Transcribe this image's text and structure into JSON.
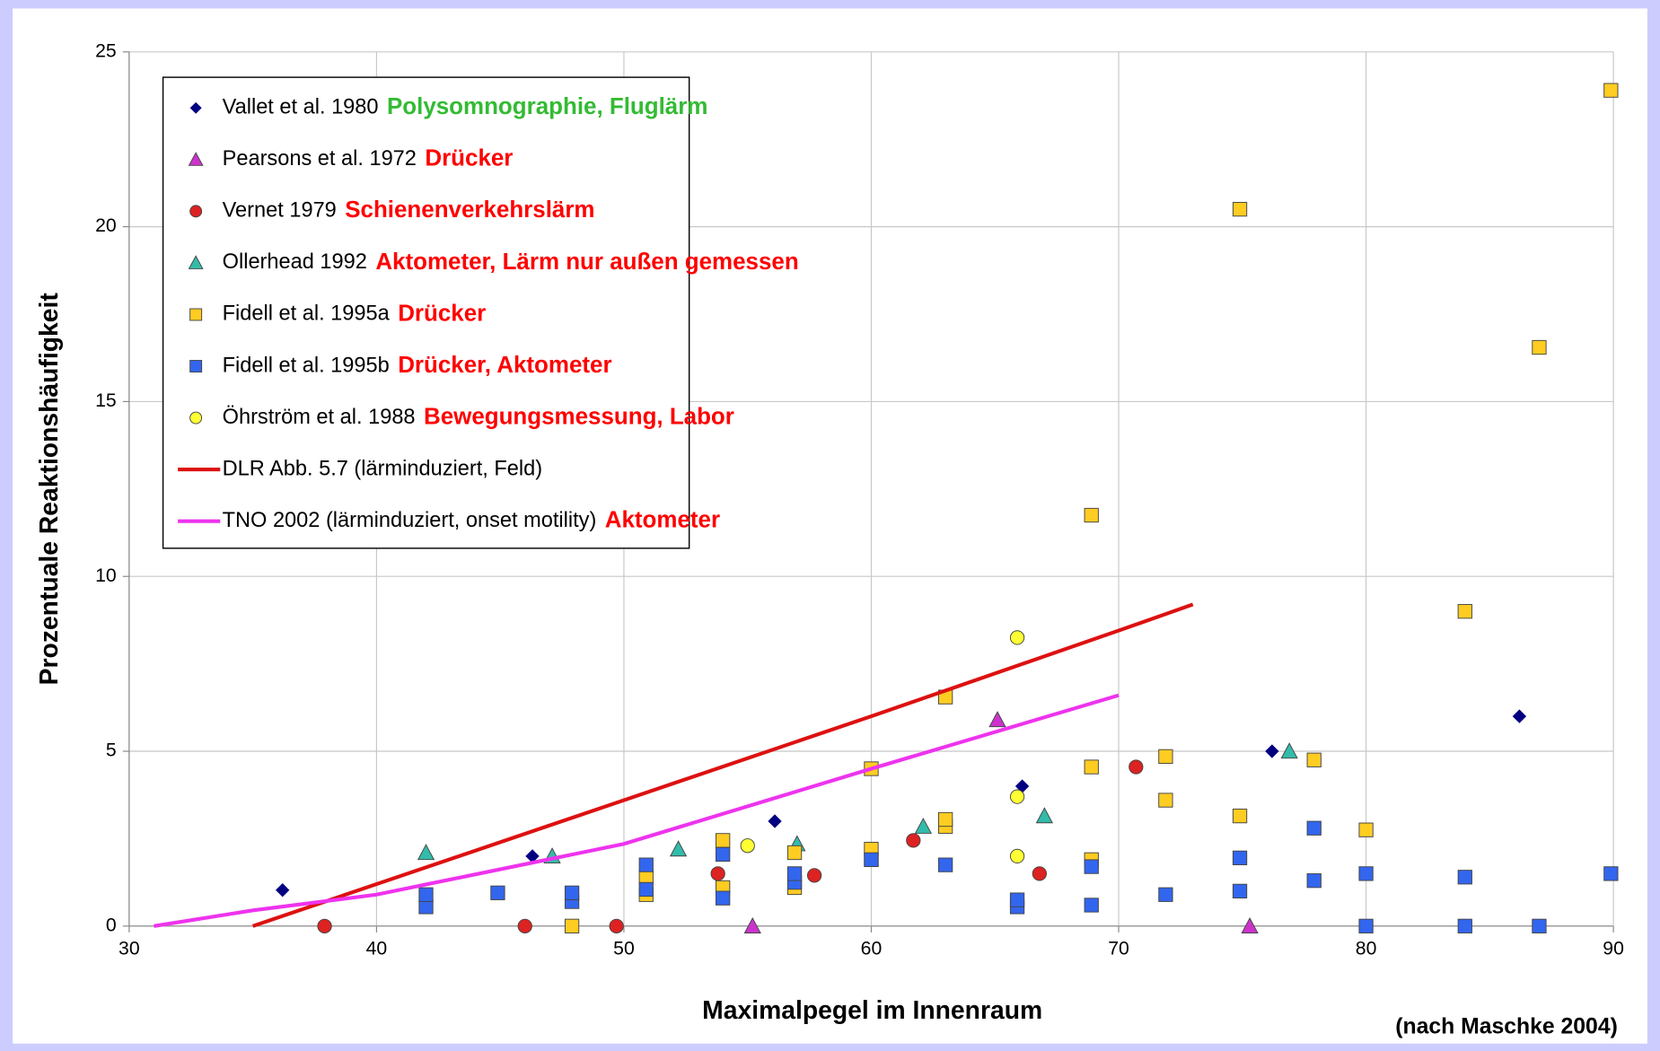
{
  "chart_data": {
    "type": "scatter",
    "x_label": "Maximalpegel im Innenraum",
    "y_label": "Prozentuale Reaktionshäufigkeit",
    "source": "(nach Maschke 2004)",
    "xlim": [
      30,
      90
    ],
    "xticks": [
      30,
      40,
      50,
      60,
      70,
      80,
      90
    ],
    "ylim": [
      0,
      25
    ],
    "yticks": [
      0,
      5,
      10,
      15,
      20,
      25
    ],
    "grid": true,
    "legend": "upper left",
    "series": [
      {
        "name": "Vallet et al. 1980",
        "note": "Polysomnographie, Fluglärm",
        "note_color": "#33bb33",
        "marker": "diamond",
        "color": "#000080",
        "x": [
          36.2,
          46.3,
          56.1,
          66.1,
          76.2,
          86.2
        ],
        "values": [
          1.03,
          2.0,
          3.0,
          4.0,
          5.0,
          6.0
        ]
      },
      {
        "name": "Pearsons et al. 1972",
        "note": "Drücker",
        "note_color": "#ff0000",
        "marker": "triangle",
        "color": "#cc33cc",
        "x": [
          55.2,
          65.1,
          75.3
        ],
        "values": [
          0,
          5.9,
          0
        ]
      },
      {
        "name": "Vernet 1979",
        "note": "Schienenverkehrslärm",
        "note_color": "#ff0000",
        "marker": "circle",
        "color": "#dd2222",
        "x": [
          37.9,
          46,
          49.7,
          53.8,
          57.7,
          61.7,
          66.8,
          70.7
        ],
        "values": [
          0,
          0,
          0,
          1.5,
          1.45,
          2.45,
          1.5,
          4.55
        ]
      },
      {
        "name": "Ollerhead 1992",
        "note": "Aktometer, Lärm nur außen gemessen",
        "note_color": "#ff0000",
        "marker": "triangle",
        "color": "#33bbaa",
        "x": [
          42,
          47.1,
          52.2,
          57,
          62.1,
          67,
          76.9
        ],
        "values": [
          2.1,
          2.0,
          2.2,
          2.35,
          2.85,
          3.15,
          5.0
        ]
      },
      {
        "name": "Fidell et al. 1995a",
        "note": "Drücker",
        "note_color": "#ff0000",
        "marker": "square",
        "color": "#ffcc22",
        "x": [
          47.9,
          50.9,
          50.9,
          54,
          54,
          56.9,
          56.9,
          60,
          60,
          60,
          63,
          63,
          63,
          68.9,
          68.9,
          68.9,
          71.9,
          71.9,
          74.9,
          74.9,
          77.9,
          80,
          84,
          87,
          89.9
        ],
        "values": [
          0,
          0.9,
          1.4,
          1.1,
          2.45,
          1.1,
          2.1,
          1.9,
          2.2,
          4.5,
          2.85,
          3.05,
          6.55,
          1.9,
          4.55,
          11.75,
          3.6,
          4.85,
          3.15,
          20.5,
          4.75,
          2.75,
          9.0,
          16.55,
          23.9
        ]
      },
      {
        "name": "Fidell et al. 1995b",
        "note": "Drücker, Aktometer",
        "note_color": "#ff0000",
        "marker": "square",
        "color": "#3366ee",
        "x": [
          42,
          42,
          44.9,
          47.9,
          47.9,
          50.9,
          50.9,
          54,
          54,
          56.9,
          56.9,
          60,
          63,
          65.9,
          65.9,
          68.9,
          68.9,
          71.9,
          74.9,
          74.9,
          77.9,
          77.9,
          80,
          80,
          84,
          84,
          87,
          89.9
        ],
        "values": [
          0.55,
          0.9,
          0.95,
          0.7,
          0.95,
          1.05,
          1.75,
          0.8,
          2.05,
          1.25,
          1.5,
          1.9,
          1.75,
          0.55,
          0.75,
          0.6,
          1.7,
          0.9,
          1.0,
          1.95,
          1.3,
          2.8,
          1.5,
          0,
          1.4,
          0,
          0,
          1.5
        ]
      },
      {
        "name": "Öhrström et al. 1988",
        "note": "Bewegungsmessung, Labor",
        "note_color": "#ff0000",
        "marker": "circle",
        "color": "#ffff33",
        "x": [
          55,
          65.9,
          65.9,
          65.9
        ],
        "values": [
          2.3,
          8.25,
          3.7,
          2.0
        ]
      },
      {
        "name": "DLR Abb. 5.7 (lärminduziert, Feld)",
        "marker": "line",
        "color": "#dd1111",
        "x": [
          35,
          40,
          50,
          60,
          70,
          73
        ],
        "values": [
          0,
          1.2,
          3.6,
          6.0,
          8.45,
          9.2
        ]
      },
      {
        "name": "TNO 2002 (lärminduziert, onset motility)",
        "note": "Aktometer",
        "note_color": "#ff0000",
        "marker": "line",
        "color": "#ee33ee",
        "x": [
          31,
          35,
          40,
          50,
          60,
          70
        ],
        "values": [
          0,
          0.45,
          0.9,
          2.35,
          4.5,
          6.6
        ]
      }
    ]
  }
}
